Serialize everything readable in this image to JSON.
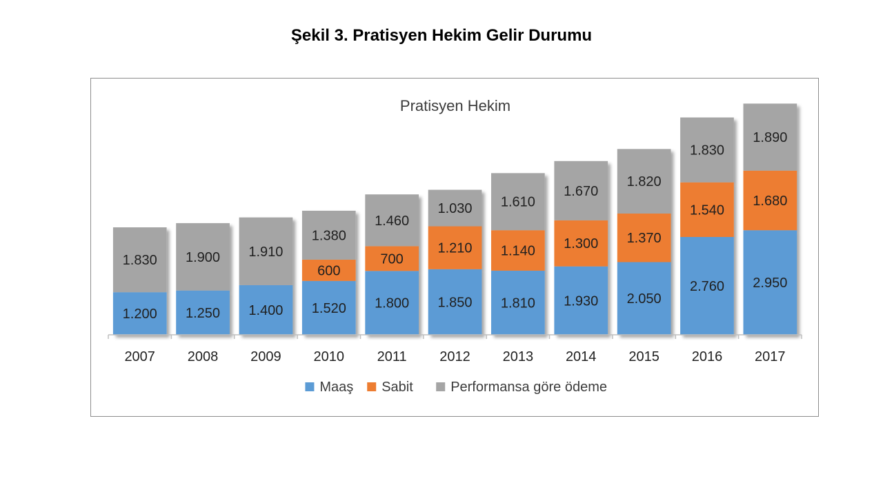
{
  "page": {
    "title": "Şekil 3. Pratisyen Hekim Gelir Durumu"
  },
  "colors": {
    "maas": "#5b9bd5",
    "sabit": "#ed7d31",
    "performans": "#a5a5a5"
  },
  "chart_data": {
    "type": "bar",
    "stacked": true,
    "title": "Pratisyen Hekim",
    "xlabel": "",
    "ylabel": "",
    "ylim": [
      0,
      6800
    ],
    "grid": false,
    "legend_position": "bottom",
    "categories": [
      "2007",
      "2008",
      "2009",
      "2010",
      "2011",
      "2012",
      "2013",
      "2014",
      "2015",
      "2016",
      "2017"
    ],
    "series": [
      {
        "name": "Maaş",
        "color": "#5b9bd5",
        "values": [
          1200,
          1250,
          1400,
          1520,
          1800,
          1850,
          1810,
          1930,
          2050,
          2760,
          2950
        ],
        "labels": [
          "1.200",
          "1.250",
          "1.400",
          "1.520",
          "1.800",
          "1.850",
          "1.810",
          "1.930",
          "2.050",
          "2.760",
          "2.950"
        ]
      },
      {
        "name": "Sabit",
        "color": "#ed7d31",
        "values": [
          0,
          0,
          0,
          600,
          700,
          1210,
          1140,
          1300,
          1370,
          1540,
          1680
        ],
        "labels": [
          "",
          "",
          "",
          "600",
          "700",
          "1.210",
          "1.140",
          "1.300",
          "1.370",
          "1.540",
          "1.680"
        ]
      },
      {
        "name": "Performansa göre ödeme",
        "color": "#a5a5a5",
        "values": [
          1830,
          1900,
          1910,
          1380,
          1460,
          1030,
          1610,
          1670,
          1820,
          1830,
          1890
        ],
        "labels": [
          "1.830",
          "1.900",
          "1.910",
          "1.380",
          "1.460",
          "1.030",
          "1.610",
          "1.670",
          "1.820",
          "1.830",
          "1.890"
        ]
      }
    ]
  }
}
